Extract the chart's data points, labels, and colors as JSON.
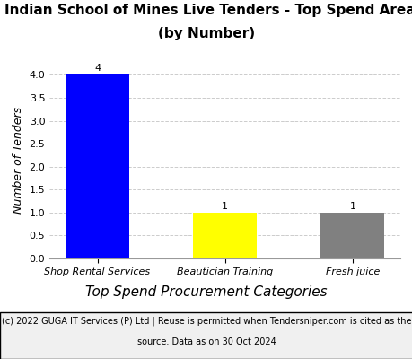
{
  "title_line1": "Indian School of Mines Live Tenders - Top Spend Areas",
  "title_line2": "(by Number)",
  "categories": [
    "Shop Rental Services",
    "Beautician Training",
    "Fresh juice"
  ],
  "values": [
    4,
    1,
    1
  ],
  "bar_colors": [
    "#0000ff",
    "#ffff00",
    "#808080"
  ],
  "ylabel": "Number of Tenders",
  "xlabel": "Top Spend Procurement Categories",
  "ylim": [
    0,
    4.3
  ],
  "yticks": [
    0.0,
    0.5,
    1.0,
    1.5,
    2.0,
    2.5,
    3.0,
    3.5,
    4.0
  ],
  "footnote_line1": "(c) 2022 GUGA IT Services (P) Ltd | Reuse is permitted when Tendersniper.com is cited as the",
  "footnote_line2": "source. Data as on 30 Oct 2024",
  "title_fontsize": 11,
  "xlabel_fontsize": 11,
  "ylabel_fontsize": 9,
  "tick_fontsize": 8,
  "bar_label_fontsize": 8,
  "footnote_fontsize": 7,
  "background_color": "#ffffff",
  "grid_color": "#cccccc",
  "footnote_bg": "#f0f0f0"
}
